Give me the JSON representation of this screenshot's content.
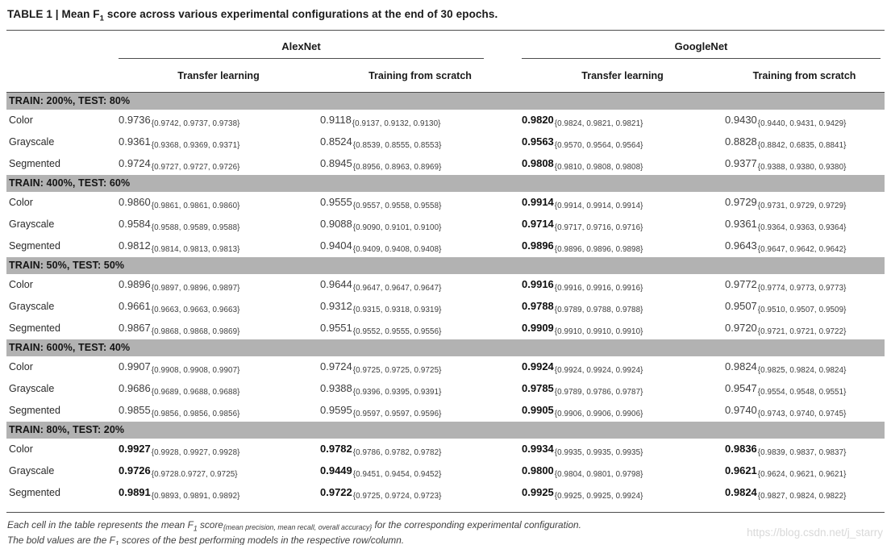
{
  "title": {
    "pre": "TABLE 1 | Mean F",
    "f_sub": "1",
    "post": " score across various experimental configurations at the end of 30 epochs."
  },
  "table": {
    "column_groups": [
      {
        "label": "AlexNet",
        "subcols": [
          "Transfer learning",
          "Training from scratch"
        ]
      },
      {
        "label": "GoogleNet",
        "subcols": [
          "Transfer learning",
          "Training from scratch"
        ]
      }
    ],
    "groups": [
      {
        "header": "TRAIN: 200%, TEST: 80%",
        "rows": [
          {
            "label": "Color",
            "cells": [
              {
                "main": "0.9736",
                "sub": "{0.9742, 0.9737, 0.9738}",
                "bold": false
              },
              {
                "main": "0.9118",
                "sub": "{0.9137, 0.9132, 0.9130}",
                "bold": false
              },
              {
                "main": "0.9820",
                "sub": "{0.9824, 0.9821, 0.9821}",
                "bold": true
              },
              {
                "main": "0.9430",
                "sub": "{0.9440, 0.9431, 0.9429}",
                "bold": false
              }
            ]
          },
          {
            "label": "Grayscale",
            "cells": [
              {
                "main": "0.9361",
                "sub": "{0.9368, 0.9369, 0.9371}",
                "bold": false
              },
              {
                "main": "0.8524",
                "sub": "{0.8539, 0.8555, 0.8553}",
                "bold": false
              },
              {
                "main": "0.9563",
                "sub": "{0.9570, 0.9564, 0.9564}",
                "bold": true
              },
              {
                "main": "0.8828",
                "sub": "{0.8842, 0.6835, 0.8841}",
                "bold": false
              }
            ]
          },
          {
            "label": "Segmented",
            "cells": [
              {
                "main": "0.9724",
                "sub": "{0.9727, 0.9727, 0.9726}",
                "bold": false
              },
              {
                "main": "0.8945",
                "sub": "{0.8956, 0.8963, 0.8969}",
                "bold": false
              },
              {
                "main": "0.9808",
                "sub": "{0.9810, 0.9808, 0.9808}",
                "bold": true
              },
              {
                "main": "0.9377",
                "sub": "{0.9388, 0.9380, 0.9380}",
                "bold": false
              }
            ]
          }
        ]
      },
      {
        "header": "TRAIN: 400%, TEST: 60%",
        "rows": [
          {
            "label": "Color",
            "cells": [
              {
                "main": "0.9860",
                "sub": "{0.9861, 0.9861, 0.9860}",
                "bold": false
              },
              {
                "main": "0.9555",
                "sub": "{0.9557, 0.9558, 0.9558}",
                "bold": false
              },
              {
                "main": "0.9914",
                "sub": "{0.9914, 0.9914, 0.9914}",
                "bold": true
              },
              {
                "main": "0.9729",
                "sub": "{0.9731, 0.9729, 0.9729}",
                "bold": false
              }
            ]
          },
          {
            "label": "Grayscale",
            "cells": [
              {
                "main": "0.9584",
                "sub": "{0.9588, 0.9589, 0.9588}",
                "bold": false
              },
              {
                "main": "0.9088",
                "sub": "{0.9090, 0.9101, 0.9100}",
                "bold": false
              },
              {
                "main": "0.9714",
                "sub": "{0.9717, 0.9716, 0.9716}",
                "bold": true
              },
              {
                "main": "0.9361",
                "sub": "{0.9364, 0.9363, 0.9364}",
                "bold": false
              }
            ]
          },
          {
            "label": "Segmented",
            "cells": [
              {
                "main": "0.9812",
                "sub": "{0.9814, 0.9813, 0.9813}",
                "bold": false
              },
              {
                "main": "0.9404",
                "sub": "{0.9409, 0.9408, 0.9408}",
                "bold": false
              },
              {
                "main": "0.9896",
                "sub": "{0.9896, 0.9896, 0.9898}",
                "bold": true
              },
              {
                "main": "0.9643",
                "sub": "{0.9647, 0.9642, 0.9642}",
                "bold": false
              }
            ]
          }
        ]
      },
      {
        "header": "TRAIN: 50%, TEST: 50%",
        "rows": [
          {
            "label": "Color",
            "cells": [
              {
                "main": "0.9896",
                "sub": "{0.9897, 0.9896, 0.9897}",
                "bold": false
              },
              {
                "main": "0.9644",
                "sub": "{0.9647, 0.9647, 0.9647}",
                "bold": false
              },
              {
                "main": "0.9916",
                "sub": "{0.9916, 0.9916, 0.9916}",
                "bold": true
              },
              {
                "main": "0.9772",
                "sub": "{0.9774, 0.9773, 0.9773}",
                "bold": false
              }
            ]
          },
          {
            "label": "Grayscale",
            "cells": [
              {
                "main": "0.9661",
                "sub": "{0.9663, 0.9663, 0.9663}",
                "bold": false
              },
              {
                "main": "0.9312",
                "sub": "{0.9315, 0.9318, 0.9319}",
                "bold": false
              },
              {
                "main": "0.9788",
                "sub": "{0.9789, 0.9788, 0.9788}",
                "bold": true
              },
              {
                "main": "0.9507",
                "sub": "{0.9510, 0.9507, 0.9509}",
                "bold": false
              }
            ]
          },
          {
            "label": "Segmented",
            "cells": [
              {
                "main": "0.9867",
                "sub": "{0.9868, 0.9868, 0.9869}",
                "bold": false
              },
              {
                "main": "0.9551",
                "sub": "{0.9552, 0.9555, 0.9556}",
                "bold": false
              },
              {
                "main": "0.9909",
                "sub": "{0.9910, 0.9910, 0.9910}",
                "bold": true
              },
              {
                "main": "0.9720",
                "sub": "{0.9721, 0.9721, 0.9722}",
                "bold": false
              }
            ]
          }
        ]
      },
      {
        "header": "TRAIN: 600%, TEST: 40%",
        "rows": [
          {
            "label": "Color",
            "cells": [
              {
                "main": "0.9907",
                "sub": "{0.9908, 0.9908, 0.9907}",
                "bold": false
              },
              {
                "main": "0.9724",
                "sub": "{0.9725, 0.9725, 0.9725}",
                "bold": false
              },
              {
                "main": "0.9924",
                "sub": "{0.9924, 0.9924, 0.9924}",
                "bold": true
              },
              {
                "main": "0.9824",
                "sub": "{0.9825, 0.9824, 0.9824}",
                "bold": false
              }
            ]
          },
          {
            "label": "Grayscale",
            "cells": [
              {
                "main": "0.9686",
                "sub": "{0.9689, 0.9688, 0.9688}",
                "bold": false
              },
              {
                "main": "0.9388",
                "sub": "{0.9396, 0.9395, 0.9391}",
                "bold": false
              },
              {
                "main": "0.9785",
                "sub": "{0.9789, 0.9786, 0.9787}",
                "bold": true
              },
              {
                "main": "0.9547",
                "sub": "{0.9554, 0.9548, 0.9551}",
                "bold": false
              }
            ]
          },
          {
            "label": "Segmented",
            "cells": [
              {
                "main": "0.9855",
                "sub": "{0.9856, 0.9856, 0.9856}",
                "bold": false
              },
              {
                "main": "0.9595",
                "sub": "{0.9597, 0.9597, 0.9596}",
                "bold": false
              },
              {
                "main": "0.9905",
                "sub": "{0.9906, 0.9906, 0.9906}",
                "bold": true
              },
              {
                "main": "0.9740",
                "sub": "{0.9743, 0.9740, 0.9745}",
                "bold": false
              }
            ]
          }
        ]
      },
      {
        "header": "TRAIN: 80%, TEST: 20%",
        "rows": [
          {
            "label": "Color",
            "cells": [
              {
                "main": "0.9927",
                "sub": "{0.9928, 0.9927, 0.9928}",
                "bold": true
              },
              {
                "main": "0.9782",
                "sub": "{0.9786, 0.9782, 0.9782}",
                "bold": true
              },
              {
                "main": "0.9934",
                "sub": "{0.9935, 0.9935, 0.9935}",
                "bold": true
              },
              {
                "main": "0.9836",
                "sub": "{0.9839, 0.9837, 0.9837}",
                "bold": true
              }
            ]
          },
          {
            "label": "Grayscale",
            "cells": [
              {
                "main": "0.9726",
                "sub": "{0.9728.0.9727, 0.9725}",
                "bold": true
              },
              {
                "main": "0.9449",
                "sub": "{0.9451, 0.9454, 0.9452}",
                "bold": true
              },
              {
                "main": "0.9800",
                "sub": "{0.9804, 0.9801, 0.9798}",
                "bold": true
              },
              {
                "main": "0.9621",
                "sub": "{0.9624, 0.9621, 0.9621}",
                "bold": true
              }
            ]
          },
          {
            "label": "Segmented",
            "cells": [
              {
                "main": "0.9891",
                "sub": "{0.9893, 0.9891, 0.9892}",
                "bold": true
              },
              {
                "main": "0.9722",
                "sub": "{0.9725, 0.9724, 0.9723}",
                "bold": true
              },
              {
                "main": "0.9925",
                "sub": "{0.9925, 0.9925, 0.9924}",
                "bold": true
              },
              {
                "main": "0.9824",
                "sub": "{0.9827, 0.9824, 0.9822}",
                "bold": true
              }
            ]
          }
        ]
      }
    ]
  },
  "footnotes": {
    "line1_pre": "Each cell in the table represents the mean F",
    "line1_f_sub": "1",
    "line1_mid": " score",
    "line1_sub": "{mean precision, mean recall, overall accuracy}",
    "line1_post": " for the corresponding experimental configuration.",
    "line2_pre": "The bold values are the F",
    "line2_f_sub": "1",
    "line2_post": " scores of the best performing models in the respective row/column."
  },
  "watermark": "https://blog.csdn.net/j_starry",
  "colors": {
    "band": "#b2b2b2",
    "rule": "#4d4d4d",
    "text": "#1a1a1a",
    "value": "#3c3c3c",
    "watermark": "#d9d9d9"
  }
}
